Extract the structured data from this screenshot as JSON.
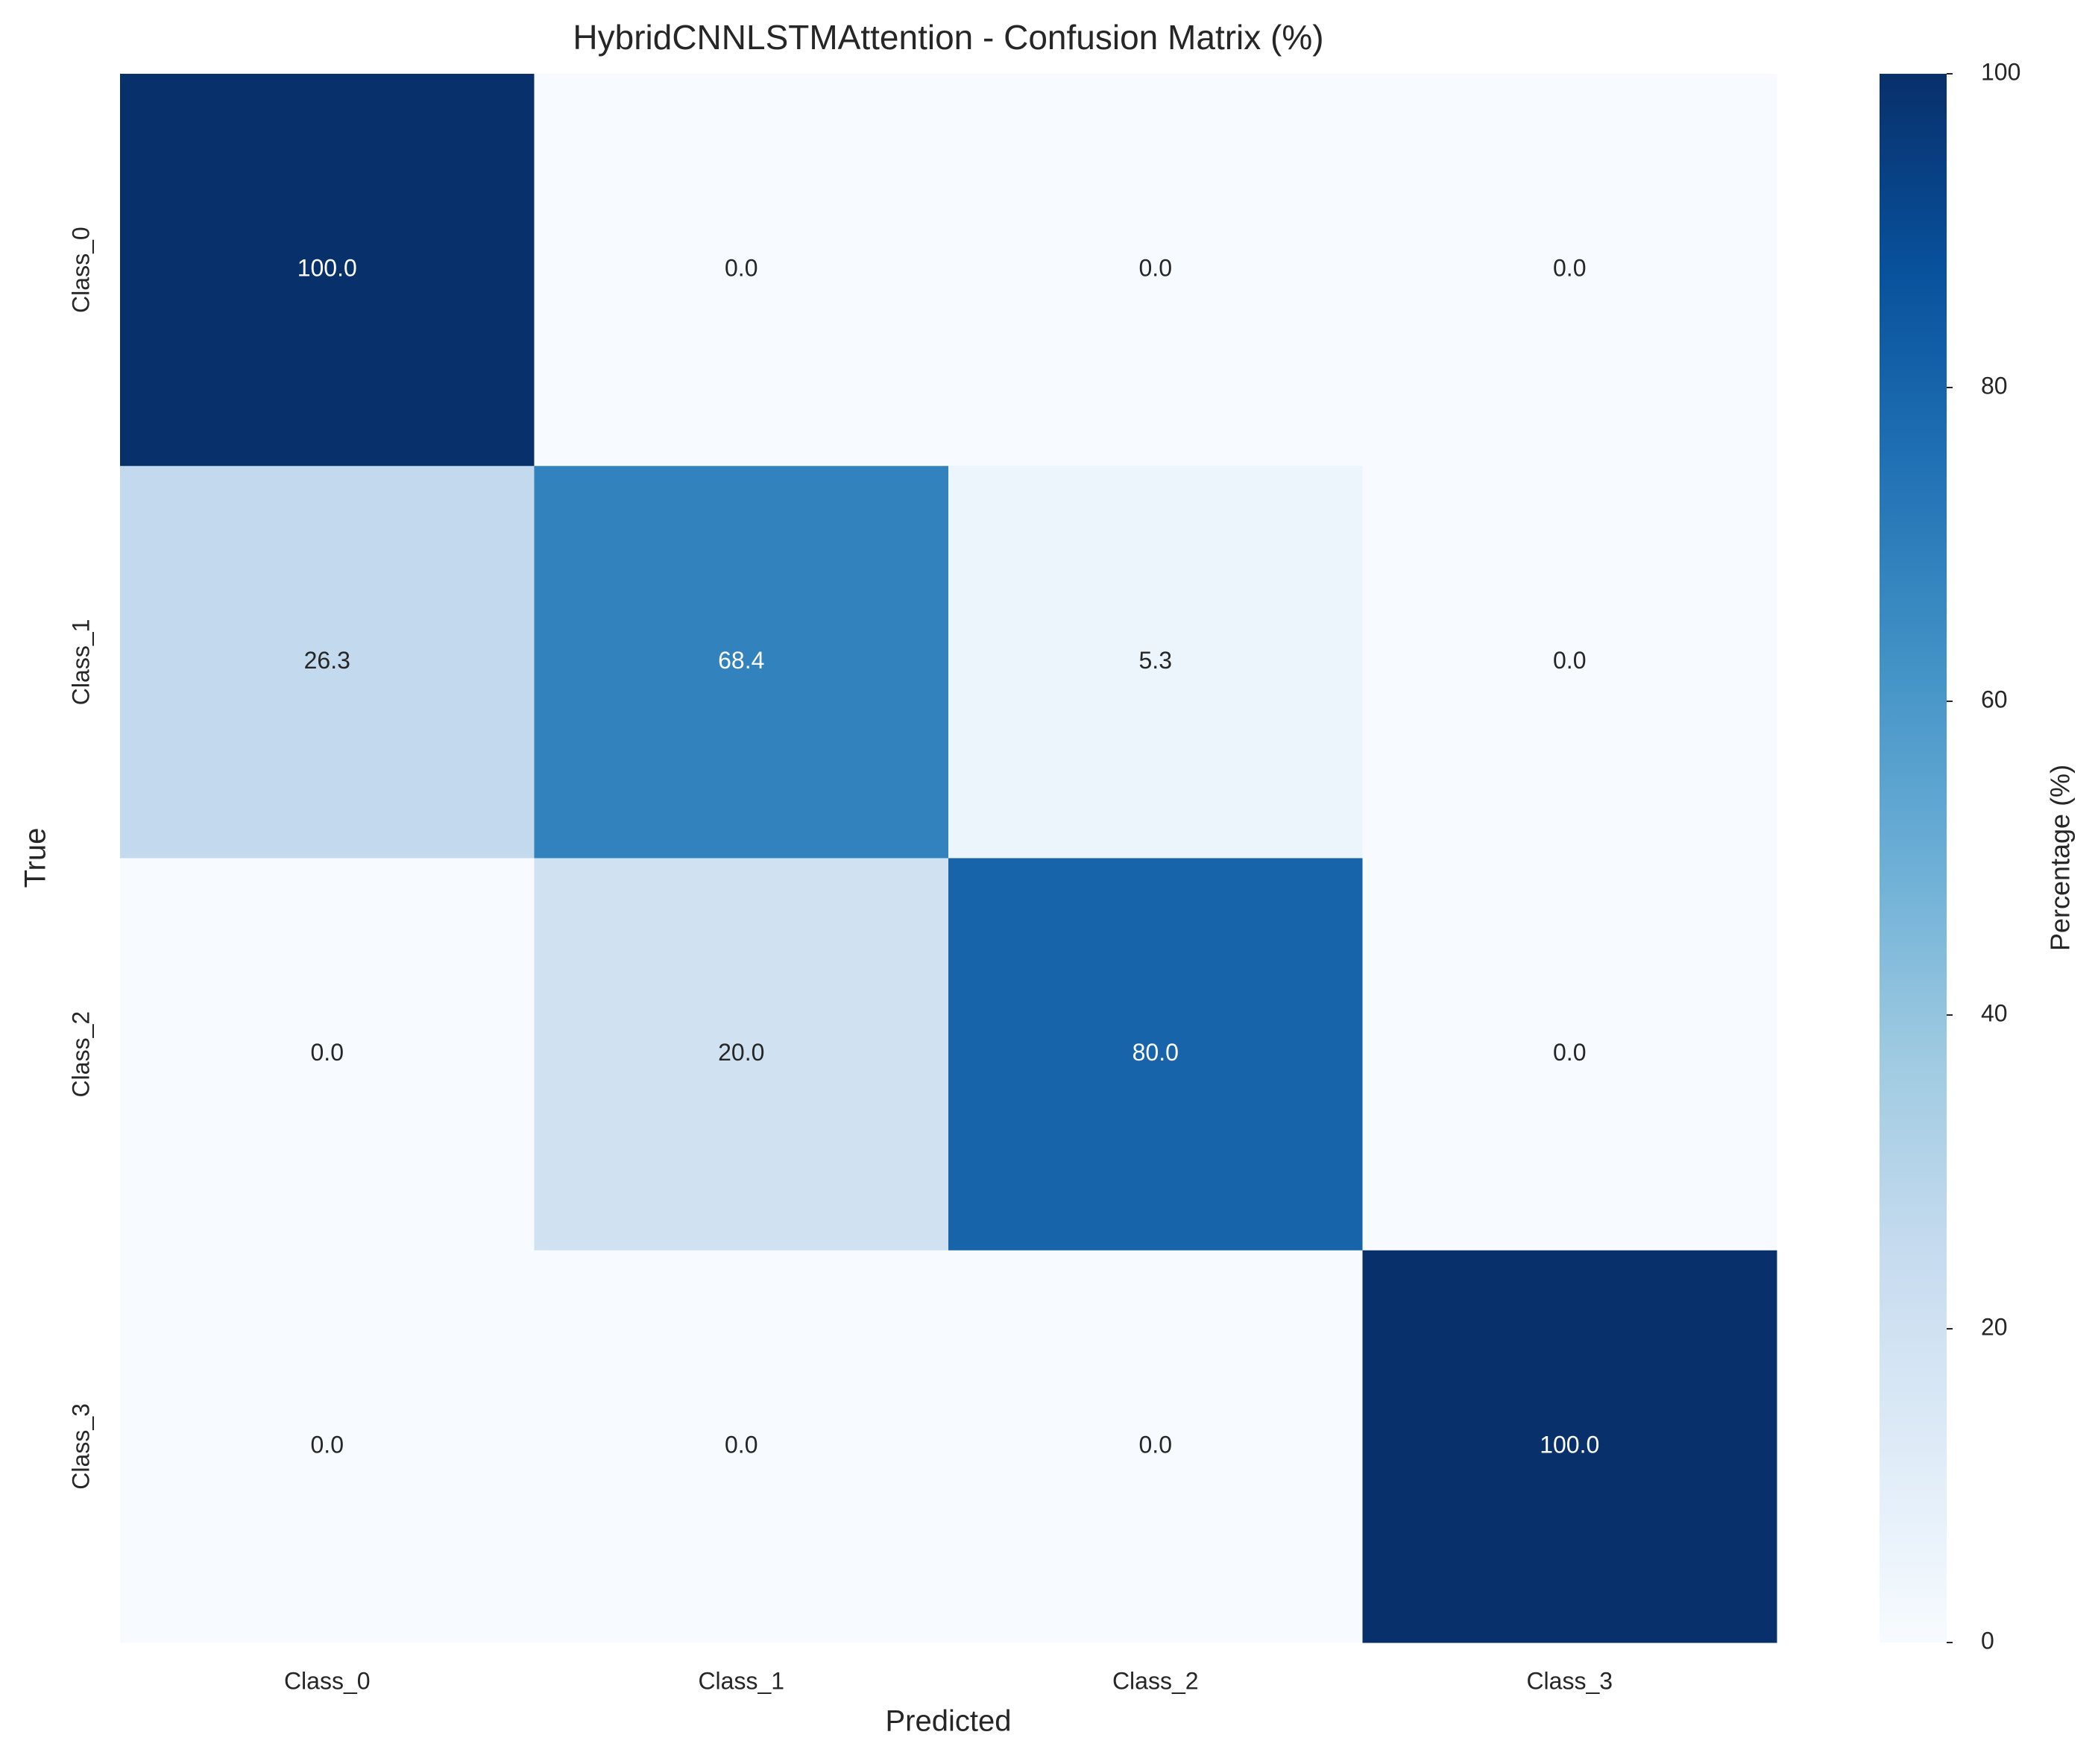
{
  "chart_data": {
    "type": "heatmap",
    "title": "HybridCNNLSTMAttention - Confusion Matrix (%)",
    "xlabel": "Predicted",
    "ylabel": "True",
    "x_categories": [
      "Class_0",
      "Class_1",
      "Class_2",
      "Class_3"
    ],
    "y_categories": [
      "Class_0",
      "Class_1",
      "Class_2",
      "Class_3"
    ],
    "values": [
      [
        100,
        0,
        0,
        0
      ],
      [
        26.3,
        68.4,
        5.3,
        0
      ],
      [
        0,
        20,
        80,
        0
      ],
      [
        0,
        0,
        0,
        100
      ]
    ],
    "value_labels": [
      [
        "100.0",
        "0.0",
        "0.0",
        "0.0"
      ],
      [
        "26.3",
        "68.4",
        "5.3",
        "0.0"
      ],
      [
        "0.0",
        "20.0",
        "80.0",
        "0.0"
      ],
      [
        "0.0",
        "0.0",
        "0.0",
        "100.0"
      ]
    ],
    "colormap": "Blues",
    "colorbar_label": "Percentage (%)",
    "clim": [
      0,
      100
    ],
    "cticks": [
      0,
      20,
      40,
      60,
      80,
      100
    ]
  }
}
